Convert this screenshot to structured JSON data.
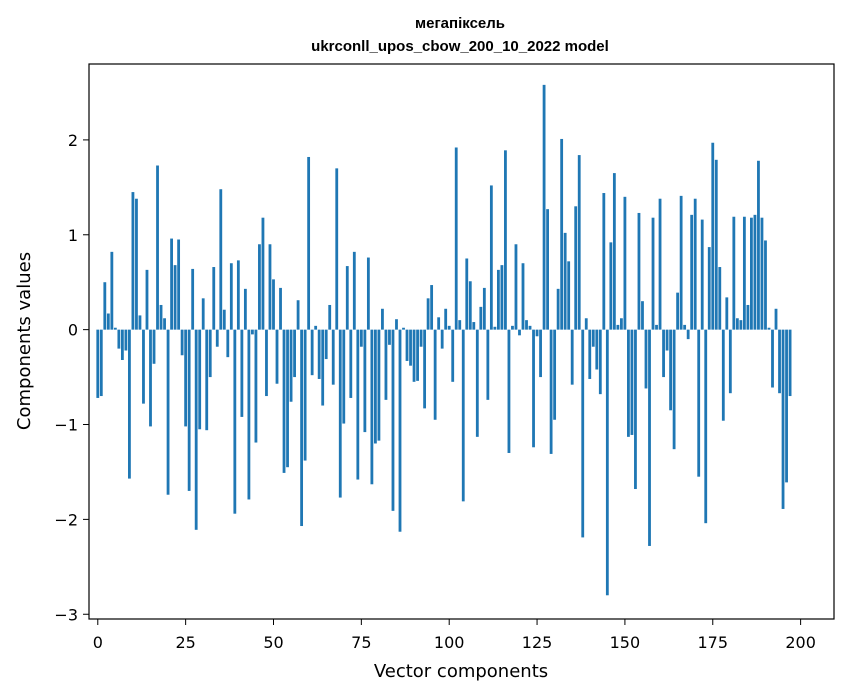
{
  "chart_data": {
    "type": "bar",
    "title_line1": "мегапіксель",
    "title_line2": "ukrconll_upos_cbow_200_10_2022 model",
    "xlabel": "Vector components",
    "ylabel": "Components values",
    "xlim": [
      -2.5,
      209.5
    ],
    "ylim": [
      -3.05,
      2.8
    ],
    "xticks": [
      0,
      25,
      50,
      75,
      100,
      125,
      150,
      175,
      200
    ],
    "yticks": [
      -3,
      -2,
      -1,
      0,
      1,
      2
    ],
    "ytick_labels": [
      "−3",
      "−2",
      "−1",
      "0",
      "1",
      "2"
    ],
    "grid": false,
    "bar_color": "#1f77b4",
    "values": [
      -0.72,
      -0.7,
      0.5,
      0.17,
      0.82,
      0.02,
      -0.2,
      -0.32,
      -0.22,
      -1.57,
      1.45,
      1.38,
      0.15,
      -0.78,
      0.63,
      -1.02,
      -0.36,
      1.73,
      0.26,
      0.12,
      -1.74,
      0.96,
      0.68,
      0.95,
      -0.27,
      -1.02,
      -1.7,
      0.64,
      -2.11,
      -1.05,
      0.33,
      -1.06,
      -0.5,
      0.66,
      -0.18,
      1.48,
      0.21,
      -0.29,
      0.7,
      -1.94,
      0.73,
      -0.92,
      0.43,
      -1.79,
      -0.05,
      -1.19,
      0.9,
      1.18,
      -0.7,
      0.9,
      0.53,
      -0.57,
      0.44,
      -1.51,
      -1.45,
      -0.76,
      -0.5,
      0.31,
      -2.07,
      -1.38,
      1.82,
      -0.48,
      0.04,
      -0.52,
      -0.8,
      -0.31,
      0.26,
      -0.58,
      1.7,
      -1.77,
      -0.99,
      0.67,
      -0.72,
      0.82,
      -1.58,
      -0.18,
      -1.08,
      0.76,
      -1.63,
      -1.2,
      -1.17,
      0.22,
      -0.74,
      -0.16,
      -1.91,
      0.11,
      -2.13,
      0.02,
      -0.33,
      -0.38,
      -0.55,
      -0.54,
      -0.18,
      -0.83,
      0.33,
      0.47,
      -0.95,
      0.13,
      -0.2,
      0.22,
      0.04,
      -0.55,
      1.92,
      0.1,
      -1.81,
      0.75,
      0.51,
      0.08,
      -1.13,
      0.24,
      0.44,
      -0.74,
      1.52,
      0.03,
      0.63,
      0.68,
      1.89,
      -1.3,
      0.04,
      0.9,
      -0.06,
      0.7,
      0.1,
      0.04,
      -1.24,
      -0.07,
      -0.5,
      2.58,
      1.27,
      -1.31,
      -0.95,
      0.43,
      2.01,
      1.02,
      0.72,
      -0.58,
      1.3,
      1.84,
      -2.19,
      0.12,
      -0.52,
      -0.18,
      -0.42,
      -0.68,
      1.44,
      -2.8,
      0.92,
      1.65,
      0.05,
      0.12,
      1.4,
      -1.13,
      -1.11,
      -1.68,
      1.23,
      0.3,
      -0.62,
      -2.28,
      1.18,
      0.05,
      1.38,
      -0.5,
      -0.22,
      -0.85,
      -1.26,
      0.39,
      1.41,
      0.05,
      -0.1,
      1.21,
      1.38,
      -1.55,
      1.16,
      -2.04,
      0.87,
      1.97,
      1.79,
      0.66,
      -0.96,
      0.34,
      -0.67,
      1.19,
      0.12,
      0.1,
      1.19,
      0.26,
      1.18,
      1.21,
      1.78,
      1.18,
      0.94,
      0.02,
      -0.61,
      0.22,
      -0.67,
      -1.89,
      -1.61,
      -0.7
    ]
  }
}
